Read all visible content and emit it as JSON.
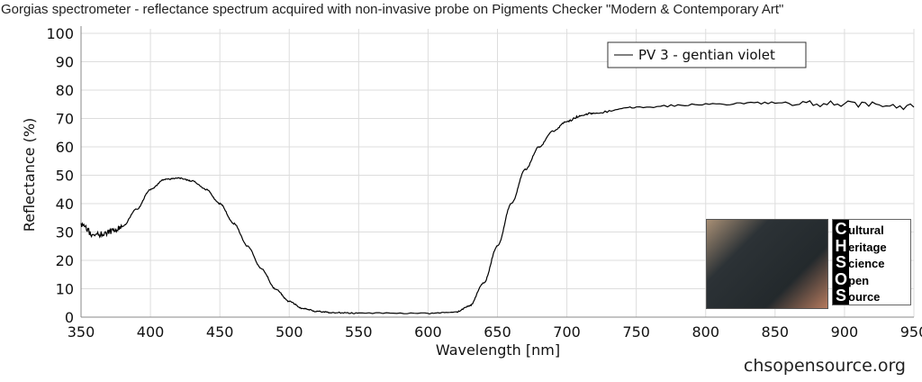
{
  "chart_data": {
    "type": "line",
    "title": "Gorgias spectrometer - reflectance spectrum acquired with non-invasive probe on Pigments Checker \"Modern & Contemporary Art\"",
    "xlabel": "Wavelength [nm]",
    "ylabel": "Reflectance (%)",
    "xlim": [
      350,
      950
    ],
    "ylim": [
      0,
      100
    ],
    "xticks": [
      350,
      400,
      450,
      500,
      550,
      600,
      650,
      700,
      750,
      800,
      850,
      900,
      950
    ],
    "yticks": [
      0,
      10,
      20,
      30,
      40,
      50,
      60,
      70,
      80,
      90,
      100
    ],
    "grid": true,
    "legend_position": "top-right",
    "series": [
      {
        "name": "PV 3 - gentian violet",
        "color": "#000000",
        "x": [
          350,
          360,
          370,
          380,
          390,
          400,
          410,
          420,
          430,
          440,
          450,
          460,
          470,
          480,
          490,
          500,
          510,
          520,
          530,
          550,
          600,
          620,
          630,
          640,
          650,
          660,
          670,
          680,
          690,
          700,
          710,
          720,
          750,
          800,
          850,
          900,
          950
        ],
        "y": [
          32,
          29,
          30,
          32,
          38,
          45,
          48.5,
          49,
          48,
          45,
          40,
          33,
          25,
          17,
          10,
          5.5,
          3,
          2,
          1.6,
          1.4,
          1.3,
          1.8,
          4,
          12,
          25,
          40,
          52,
          60,
          65.5,
          69,
          71,
          72,
          74,
          75,
          75.5,
          75,
          74
        ]
      }
    ]
  },
  "logo": {
    "letters": [
      "C",
      "H",
      "S",
      "O",
      "S"
    ],
    "words": [
      "ultural",
      "eritage",
      "cience",
      "pen",
      "ource"
    ]
  },
  "footer": "chsopensource.org"
}
